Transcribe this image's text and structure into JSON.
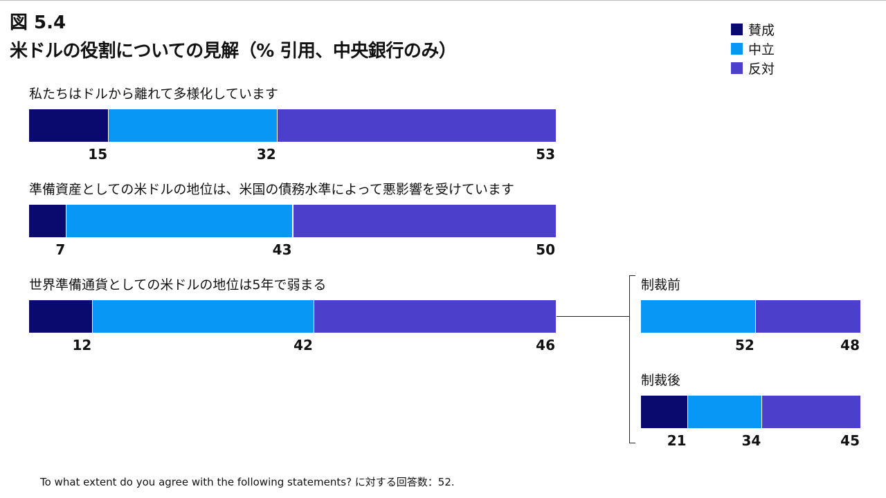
{
  "figure_number": "図 5.4",
  "title": "米ドルの役割についての見解（% 引用、中央銀行のみ）",
  "legend": [
    {
      "label": "賛成",
      "color": "#0a0a6e"
    },
    {
      "label": "中立",
      "color": "#0897f5"
    },
    {
      "label": "反対",
      "color": "#4b3fcc"
    }
  ],
  "chart_data": {
    "type": "bar",
    "orientation": "horizontal-stacked-100",
    "series_names": [
      "賛成",
      "中立",
      "反対"
    ],
    "statements": [
      {
        "label": "私たちはドルから離れて多様化しています",
        "values": [
          15,
          32,
          53
        ]
      },
      {
        "label": "準備資産としての米ドルの地位は、米国の債務水準によって悪影響を受けています",
        "values": [
          7,
          43,
          50
        ]
      },
      {
        "label": "世界準備通貨としての米ドルの地位は5年で弱まる",
        "values": [
          12,
          42,
          46
        ]
      }
    ],
    "breakdown": [
      {
        "label": "制裁前",
        "values": [
          0,
          52,
          48
        ]
      },
      {
        "label": "制裁後",
        "values": [
          21,
          34,
          45
        ]
      }
    ]
  },
  "footnote": "To what extent do you agree with the following statements? に対する回答数：52."
}
